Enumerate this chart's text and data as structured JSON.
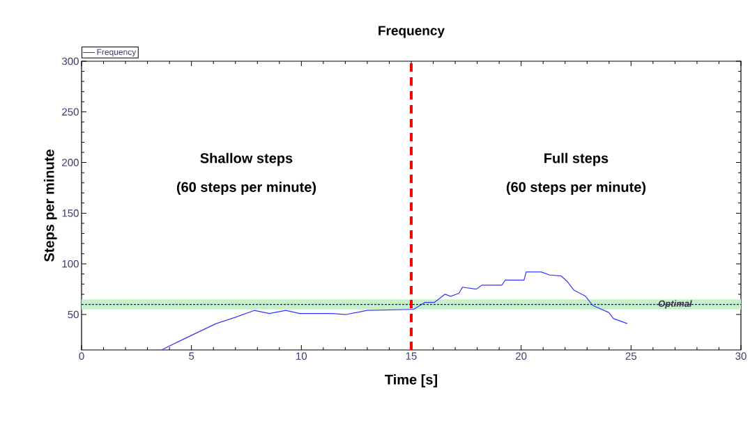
{
  "chart_data": {
    "type": "line",
    "title": "Frequency",
    "xlabel": "Time [s]",
    "ylabel": "Steps per minute",
    "xlim": [
      0,
      30
    ],
    "ylim": [
      15,
      300
    ],
    "xticks": [
      0,
      5,
      10,
      15,
      20,
      25,
      30
    ],
    "yticks": [
      50,
      100,
      150,
      200,
      250,
      300
    ],
    "legend": "top left",
    "grid": false,
    "marker": "none",
    "line_style": "solid",
    "series": [
      {
        "name": "Frequency",
        "color": "#3333ff",
        "x": [
          3.64,
          4.0,
          5.06,
          6.12,
          6.97,
          7.86,
          8.55,
          9.29,
          9.93,
          11.4,
          12.04,
          13.0,
          15.0,
          15.1,
          15.63,
          16.06,
          16.53,
          16.8,
          17.17,
          17.33,
          17.96,
          18.22,
          19.12,
          19.28,
          20.13,
          20.23,
          20.92,
          21.29,
          21.82,
          22.08,
          22.4,
          22.93,
          23.25,
          23.99,
          24.2,
          24.83
        ],
        "values": [
          15,
          19,
          30,
          41,
          47,
          54,
          51,
          54,
          51,
          51,
          50,
          54,
          55,
          55,
          62,
          62,
          70,
          68,
          71,
          77,
          75,
          79,
          79,
          84,
          84,
          92,
          92,
          89,
          88,
          83,
          74,
          68,
          59,
          52,
          46,
          41
        ]
      }
    ],
    "ref_lines": [
      {
        "axis": "x",
        "value": 15,
        "color": "#ff0000",
        "line_style": "dashed"
      },
      {
        "axis": "y",
        "value": 60,
        "label": "Optimal",
        "color": "#0000ff",
        "line_style": "dotted"
      }
    ],
    "bands": [
      {
        "axis": "y",
        "from": 55,
        "to": 65,
        "color": "#c8f0c8"
      }
    ],
    "annotations": [
      "Shallow steps",
      "(60 steps per minute)",
      "Full steps",
      "(60 steps per minute)"
    ]
  }
}
